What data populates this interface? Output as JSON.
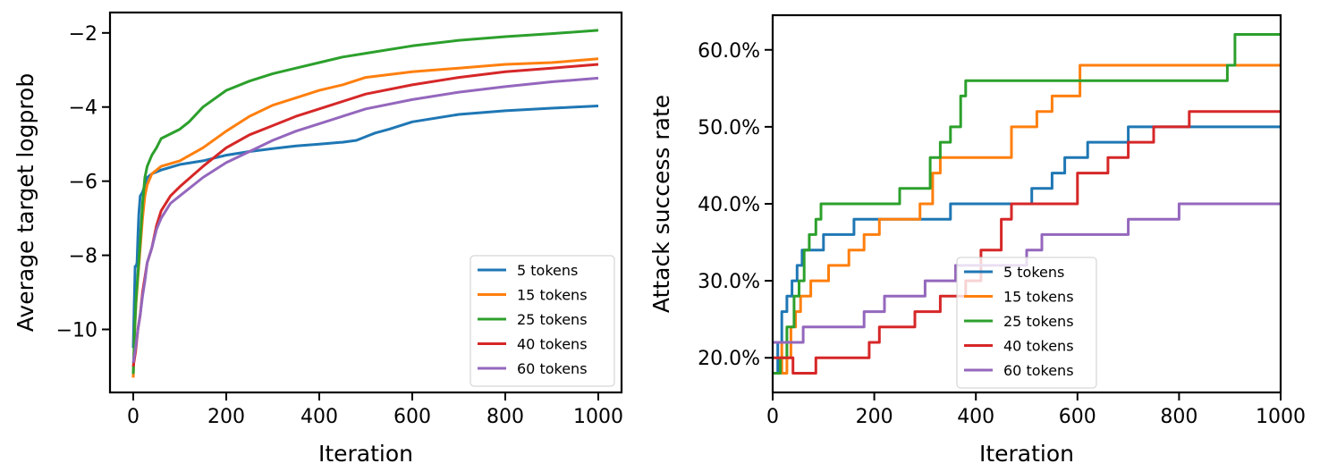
{
  "colors": {
    "5 tokens": "#1f77b4",
    "15 tokens": "#ff7f0e",
    "25 tokens": "#2ca02c",
    "40 tokens": "#d62728",
    "60 tokens": "#9467bd"
  },
  "chart_data": [
    {
      "type": "line",
      "title": "",
      "xlabel": "Iteration",
      "ylabel": "Average target logprob",
      "xlim": [
        -50,
        1050
      ],
      "ylim": [
        -11.7,
        -1.45
      ],
      "xticks": [
        0,
        200,
        400,
        600,
        800,
        1000
      ],
      "yticks": [
        -10,
        -8,
        -6,
        -4,
        -2
      ],
      "xtick_labels": [
        "0",
        "200",
        "400",
        "600",
        "800",
        "1000"
      ],
      "ytick_labels": [
        "−10",
        "−8",
        "−6",
        "−4",
        "−2"
      ],
      "grid": false,
      "legend": "lower-right",
      "series": [
        {
          "name": "5 tokens",
          "x": [
            0,
            2,
            4,
            6,
            8,
            10,
            12,
            15,
            20,
            25,
            30,
            40,
            60,
            100,
            150,
            200,
            250,
            300,
            350,
            400,
            450,
            480,
            500,
            520,
            550,
            600,
            700,
            800,
            900,
            1000
          ],
          "y": [
            -10.5,
            -9.4,
            -8.3,
            -8.3,
            -8.2,
            -7.5,
            -6.9,
            -6.4,
            -6.3,
            -6.1,
            -5.9,
            -5.8,
            -5.7,
            -5.55,
            -5.45,
            -5.3,
            -5.2,
            -5.12,
            -5.05,
            -5.0,
            -4.95,
            -4.9,
            -4.8,
            -4.7,
            -4.6,
            -4.4,
            -4.2,
            -4.1,
            -4.03,
            -3.97
          ]
        },
        {
          "name": "15 tokens",
          "x": [
            0,
            3,
            6,
            10,
            15,
            20,
            25,
            30,
            40,
            60,
            100,
            150,
            200,
            250,
            300,
            350,
            400,
            450,
            500,
            600,
            700,
            800,
            900,
            1000
          ],
          "y": [
            -11.3,
            -10.0,
            -9.3,
            -8.6,
            -7.8,
            -7.0,
            -6.4,
            -6.1,
            -5.8,
            -5.6,
            -5.45,
            -5.1,
            -4.65,
            -4.25,
            -3.95,
            -3.75,
            -3.55,
            -3.4,
            -3.2,
            -3.05,
            -2.95,
            -2.85,
            -2.8,
            -2.7
          ]
        },
        {
          "name": "25 tokens",
          "x": [
            0,
            3,
            6,
            10,
            15,
            20,
            25,
            30,
            40,
            50,
            60,
            100,
            120,
            150,
            200,
            250,
            300,
            350,
            400,
            450,
            500,
            600,
            700,
            800,
            900,
            1000
          ],
          "y": [
            -11.2,
            -10.0,
            -9.2,
            -8.5,
            -7.6,
            -6.6,
            -5.9,
            -5.6,
            -5.3,
            -5.1,
            -4.85,
            -4.6,
            -4.4,
            -4.0,
            -3.55,
            -3.3,
            -3.1,
            -2.95,
            -2.8,
            -2.65,
            -2.55,
            -2.35,
            -2.2,
            -2.1,
            -2.02,
            -1.93
          ]
        },
        {
          "name": "40 tokens",
          "x": [
            0,
            5,
            10,
            15,
            20,
            25,
            30,
            40,
            50,
            60,
            80,
            100,
            150,
            200,
            250,
            300,
            350,
            400,
            450,
            500,
            600,
            700,
            800,
            900,
            1000
          ],
          "y": [
            -11.0,
            -10.6,
            -10.0,
            -9.6,
            -9.0,
            -8.6,
            -8.2,
            -7.8,
            -7.2,
            -6.8,
            -6.4,
            -6.15,
            -5.6,
            -5.1,
            -4.75,
            -4.5,
            -4.25,
            -4.05,
            -3.85,
            -3.65,
            -3.4,
            -3.2,
            -3.05,
            -2.95,
            -2.85
          ]
        },
        {
          "name": "60 tokens",
          "x": [
            0,
            5,
            10,
            15,
            20,
            25,
            30,
            40,
            50,
            60,
            80,
            100,
            150,
            200,
            250,
            300,
            350,
            400,
            450,
            500,
            600,
            700,
            800,
            900,
            1000
          ],
          "y": [
            -10.9,
            -10.5,
            -10.0,
            -9.6,
            -9.1,
            -8.7,
            -8.2,
            -7.8,
            -7.3,
            -7.0,
            -6.6,
            -6.4,
            -5.9,
            -5.5,
            -5.2,
            -4.9,
            -4.65,
            -4.45,
            -4.25,
            -4.05,
            -3.8,
            -3.6,
            -3.45,
            -3.32,
            -3.22
          ]
        }
      ]
    },
    {
      "type": "line",
      "title": "",
      "xlabel": "Iteration",
      "ylabel": "Attack success rate",
      "xlim": [
        0,
        1000
      ],
      "ylim": [
        15.5,
        64.5
      ],
      "xticks": [
        0,
        200,
        400,
        600,
        800,
        1000
      ],
      "yticks": [
        20,
        30,
        40,
        50,
        60
      ],
      "xtick_labels": [
        "0",
        "200",
        "400",
        "600",
        "800",
        "1000"
      ],
      "ytick_labels": [
        "20.0%",
        "30.0%",
        "40.0%",
        "50.0%",
        "60.0%"
      ],
      "grid": false,
      "legend": "lower-center",
      "series": [
        {
          "name": "5 tokens",
          "x": [
            0,
            10,
            18,
            28,
            38,
            48,
            58,
            70,
            100,
            130,
            160,
            350,
            510,
            550,
            575,
            620,
            700,
            1000
          ],
          "y": [
            18,
            22,
            26,
            28,
            30,
            32,
            34,
            34,
            36,
            36,
            38,
            40,
            42,
            44,
            46,
            48,
            50,
            50
          ]
        },
        {
          "name": "15 tokens",
          "x": [
            0,
            18,
            28,
            36,
            45,
            55,
            75,
            110,
            150,
            180,
            210,
            260,
            290,
            315,
            330,
            450,
            470,
            520,
            550,
            605,
            1000
          ],
          "y": [
            22,
            18,
            20,
            24,
            26,
            28,
            30,
            32,
            34,
            36,
            38,
            38,
            40,
            44,
            46,
            46,
            50,
            52,
            54,
            58,
            58
          ]
        },
        {
          "name": "25 tokens",
          "x": [
            0,
            15,
            28,
            42,
            52,
            62,
            72,
            85,
            95,
            250,
            310,
            330,
            350,
            370,
            380,
            880,
            895,
            910,
            1000
          ],
          "y": [
            18,
            20,
            24,
            28,
            30,
            34,
            36,
            38,
            40,
            42,
            46,
            48,
            50,
            54,
            56,
            56,
            58,
            62,
            62
          ]
        },
        {
          "name": "40 tokens",
          "x": [
            0,
            30,
            40,
            60,
            85,
            190,
            210,
            280,
            330,
            380,
            410,
            450,
            470,
            560,
            600,
            660,
            700,
            750,
            820,
            870,
            1000
          ],
          "y": [
            20,
            20,
            18,
            18,
            20,
            22,
            24,
            26,
            28,
            30,
            34,
            38,
            40,
            40,
            44,
            46,
            48,
            50,
            52,
            52,
            52
          ]
        },
        {
          "name": "60 tokens",
          "x": [
            0,
            40,
            60,
            100,
            180,
            220,
            250,
            300,
            360,
            430,
            500,
            530,
            560,
            600,
            700,
            800,
            1000
          ],
          "y": [
            22,
            22,
            24,
            24,
            26,
            28,
            28,
            30,
            32,
            32,
            34,
            36,
            36,
            36,
            38,
            40,
            40
          ]
        }
      ]
    }
  ]
}
